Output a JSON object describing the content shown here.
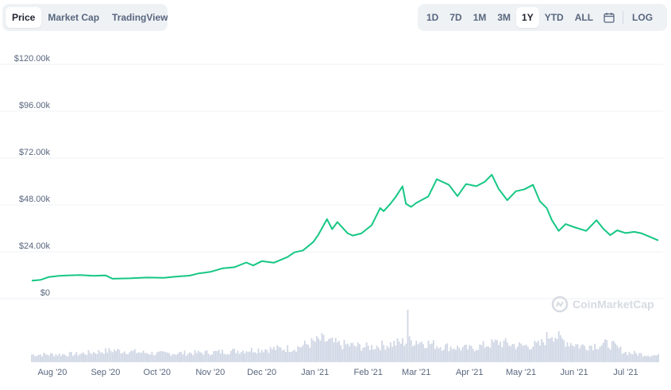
{
  "tabs": {
    "left": [
      {
        "label": "Price",
        "active": true
      },
      {
        "label": "Market Cap",
        "active": false
      },
      {
        "label": "TradingView",
        "active": false
      }
    ],
    "ranges": [
      {
        "label": "1D",
        "active": false
      },
      {
        "label": "7D",
        "active": false
      },
      {
        "label": "1M",
        "active": false
      },
      {
        "label": "3M",
        "active": false
      },
      {
        "label": "1Y",
        "active": true
      },
      {
        "label": "YTD",
        "active": false
      },
      {
        "label": "ALL",
        "active": false
      }
    ],
    "calendar_icon": "calendar-icon",
    "log_label": "LOG"
  },
  "watermark": {
    "text": "CoinMarketCap",
    "icon": "coinmarketcap-logo-icon"
  },
  "colors": {
    "line": "#16c784",
    "volume": "#cfd6e4",
    "grid": "#eff2f5",
    "accent_text": "#58667e"
  },
  "chart_data": {
    "type": "line",
    "title": "",
    "xlabel": "",
    "ylabel": "",
    "ylim": [
      0,
      120000
    ],
    "yticks": [
      "$120.00k",
      "$96.00k",
      "$72.00k",
      "$48.00k",
      "$24.00k",
      "$0"
    ],
    "ytick_values": [
      120000,
      96000,
      72000,
      48000,
      24000,
      0
    ],
    "xticks": [
      "Aug '20",
      "Sep '20",
      "Oct '20",
      "Nov '20",
      "Dec '20",
      "Jan '21",
      "Feb '21",
      "Mar '21",
      "Apr '21",
      "May '21",
      "Jun '21",
      "Jul '21"
    ],
    "xtick_dates": [
      "2020-08-01",
      "2020-09-01",
      "2020-10-01",
      "2020-11-01",
      "2020-12-01",
      "2021-01-01",
      "2021-02-01",
      "2021-03-01",
      "2021-04-01",
      "2021-05-01",
      "2021-06-01",
      "2021-07-01"
    ],
    "x_range": [
      "2020-07-20",
      "2021-07-20"
    ],
    "grid": true,
    "series": [
      {
        "x": [
          "2020-07-20",
          "2020-07-25",
          "2020-07-30",
          "2020-08-05",
          "2020-08-10",
          "2020-08-17",
          "2020-08-25",
          "2020-09-01",
          "2020-09-05",
          "2020-09-15",
          "2020-09-25",
          "2020-10-05",
          "2020-10-12",
          "2020-10-20",
          "2020-10-25",
          "2020-11-01",
          "2020-11-08",
          "2020-11-15",
          "2020-11-22",
          "2020-11-26",
          "2020-12-01",
          "2020-12-08",
          "2020-12-16",
          "2020-12-20",
          "2020-12-25",
          "2020-12-31",
          "2021-01-03",
          "2021-01-08",
          "2021-01-11",
          "2021-01-14",
          "2021-01-20",
          "2021-01-23",
          "2021-01-28",
          "2021-02-03",
          "2021-02-08",
          "2021-02-10",
          "2021-02-14",
          "2021-02-17",
          "2021-02-21",
          "2021-02-23",
          "2021-02-26",
          "2021-03-01",
          "2021-03-08",
          "2021-03-13",
          "2021-03-20",
          "2021-03-25",
          "2021-03-30",
          "2021-04-05",
          "2021-04-10",
          "2021-04-14",
          "2021-04-18",
          "2021-04-23",
          "2021-04-28",
          "2021-05-03",
          "2021-05-08",
          "2021-05-12",
          "2021-05-16",
          "2021-05-19",
          "2021-05-23",
          "2021-05-27",
          "2021-06-01",
          "2021-06-05",
          "2021-06-08",
          "2021-06-14",
          "2021-06-18",
          "2021-06-22",
          "2021-06-26",
          "2021-07-01",
          "2021-07-06",
          "2021-07-10",
          "2021-07-15",
          "2021-07-20"
        ],
        "values": [
          9200,
          9600,
          11100,
          11700,
          11900,
          12100,
          11700,
          11900,
          10200,
          10400,
          10800,
          10700,
          11300,
          11800,
          12900,
          13700,
          15500,
          16100,
          18500,
          17000,
          19200,
          18400,
          21300,
          23700,
          24700,
          29000,
          32800,
          40700,
          35600,
          39200,
          33500,
          32300,
          33400,
          37600,
          46400,
          44800,
          48700,
          52100,
          57500,
          48600,
          47000,
          49000,
          52300,
          61200,
          58300,
          52500,
          58700,
          57600,
          59900,
          63500,
          56200,
          50400,
          55000,
          56000,
          58300,
          49900,
          46400,
          40200,
          34700,
          38200,
          36600,
          35500,
          34700,
          40200,
          35800,
          32500,
          35000,
          33600,
          34200,
          33500,
          31700,
          29800
        ]
      }
    ],
    "volume": {
      "description_only_for_shape": "bars",
      "x": [
        "2020-07-20",
        "2020-08-15",
        "2020-09-05",
        "2020-10-01",
        "2020-11-01",
        "2020-12-01",
        "2020-12-20",
        "2021-01-05",
        "2021-01-15",
        "2021-02-01",
        "2021-02-15",
        "2021-02-23",
        "2021-03-01",
        "2021-03-15",
        "2021-04-01",
        "2021-04-18",
        "2021-05-01",
        "2021-05-12",
        "2021-05-19",
        "2021-05-24",
        "2021-06-05",
        "2021-06-22",
        "2021-07-01",
        "2021-07-20"
      ],
      "values": [
        0.14,
        0.15,
        0.22,
        0.16,
        0.18,
        0.24,
        0.26,
        0.42,
        0.33,
        0.28,
        0.34,
        0.38,
        0.4,
        0.3,
        0.25,
        0.37,
        0.3,
        0.32,
        0.55,
        0.42,
        0.3,
        0.34,
        0.18,
        0.12
      ]
    }
  }
}
